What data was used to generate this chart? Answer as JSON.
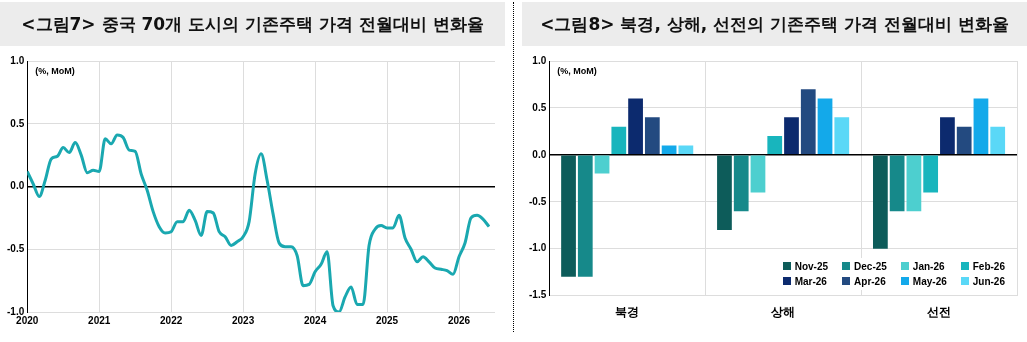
{
  "chart_data": [
    {
      "type": "line",
      "title": "<그림7> 중국 70개 도시의 기존주택 가격 전월대비 변화율",
      "annotations": [
        "(%, MoM)"
      ],
      "color": "#1aa8b0",
      "grid": true,
      "legend": false,
      "xlim": [
        "2020-01",
        "2026-07"
      ],
      "xticks": [
        "2020",
        "2021",
        "2022",
        "2023",
        "2024",
        "2025",
        "2026"
      ],
      "ylim": [
        -1,
        1
      ],
      "yticks": [
        {
          "value": -1,
          "label": "-1.0"
        },
        -0.5,
        {
          "value": 0,
          "label": "0.0"
        },
        0.5,
        {
          "value": 1,
          "label": "1.0"
        }
      ],
      "x": [
        "2020-01",
        "2020-02",
        "2020-03",
        "2020-04",
        "2020-05",
        "2020-06",
        "2020-07",
        "2020-08",
        "2020-09",
        "2020-10",
        "2020-11",
        "2020-12",
        "2021-01",
        "2021-02",
        "2021-03",
        "2021-04",
        "2021-05",
        "2021-06",
        "2021-07",
        "2021-08",
        "2021-09",
        "2021-10",
        "2021-11",
        "2021-12",
        "2022-01",
        "2022-02",
        "2022-03",
        "2022-04",
        "2022-05",
        "2022-06",
        "2022-07",
        "2022-08",
        "2022-09",
        "2022-10",
        "2022-11",
        "2022-12",
        "2023-01",
        "2023-02",
        "2023-03",
        "2023-04",
        "2023-05",
        "2023-06",
        "2023-07",
        "2023-08",
        "2023-09",
        "2023-10",
        "2023-11",
        "2023-12",
        "2024-01",
        "2024-02",
        "2024-03",
        "2024-04",
        "2024-05",
        "2024-06",
        "2024-07",
        "2024-08",
        "2024-09",
        "2024-10",
        "2024-11",
        "2024-12",
        "2025-01",
        "2025-02",
        "2025-03",
        "2025-04",
        "2025-05",
        "2025-06",
        "2025-07",
        "2025-08",
        "2025-09",
        "2025-10",
        "2025-11",
        "2025-12",
        "2026-01",
        "2026-02",
        "2026-03",
        "2026-04",
        "2026-05",
        "2026-06"
      ],
      "values": [
        0.12,
        0.02,
        -0.08,
        0.05,
        0.22,
        0.24,
        0.31,
        0.27,
        0.35,
        0.25,
        0.11,
        0.13,
        0.12,
        0.38,
        0.34,
        0.41,
        0.39,
        0.29,
        0.28,
        0.1,
        -0.03,
        -0.2,
        -0.32,
        -0.37,
        -0.36,
        -0.28,
        -0.28,
        -0.19,
        -0.27,
        -0.39,
        -0.2,
        -0.21,
        -0.36,
        -0.4,
        -0.47,
        -0.44,
        -0.4,
        -0.28,
        0.1,
        0.26,
        0.05,
        -0.22,
        -0.45,
        -0.48,
        -0.48,
        -0.55,
        -0.79,
        -0.78,
        -0.68,
        -0.62,
        -0.52,
        -0.95,
        -1.0,
        -0.88,
        -0.8,
        -0.94,
        -0.94,
        -0.47,
        -0.34,
        -0.31,
        -0.33,
        -0.33,
        -0.23,
        -0.41,
        -0.5,
        -0.6,
        -0.56,
        -0.6,
        -0.65,
        -0.66,
        -0.67,
        -0.7,
        -0.56,
        -0.45,
        -0.25,
        -0.23,
        -0.26,
        -0.32
      ]
    },
    {
      "type": "bar",
      "title": "<그림8> 북경, 상해, 선전의 기존주택 가격 전월대비 변화율",
      "annotations": [
        "(%, MoM)"
      ],
      "grid": true,
      "legend": "bottom right",
      "ylim": [
        -1.5,
        1
      ],
      "yticks": [
        -1.5,
        {
          "value": -1,
          "label": "-1.0"
        },
        -0.5,
        {
          "value": 0,
          "label": "0.0"
        },
        0.5,
        {
          "value": 1,
          "label": "1.0"
        }
      ],
      "categories": [
        "북경",
        "상해",
        "선전"
      ],
      "series": [
        {
          "name": "Nov-25",
          "color": "#0d5c5a",
          "values": [
            -1.3,
            -0.8,
            -1.0
          ]
        },
        {
          "name": "Dec-25",
          "color": "#16898a",
          "values": [
            -1.3,
            -0.6,
            -0.6
          ]
        },
        {
          "name": "Jan-26",
          "color": "#4dcfcf",
          "values": [
            -0.2,
            -0.4,
            -0.6
          ]
        },
        {
          "name": "Feb-26",
          "color": "#18b5bd",
          "values": [
            0.3,
            0.2,
            -0.4
          ]
        },
        {
          "name": "Mar-26",
          "color": "#0c2a6e",
          "values": [
            0.6,
            0.4,
            0.4
          ]
        },
        {
          "name": "Apr-26",
          "color": "#234a80",
          "values": [
            0.4,
            0.7,
            0.3
          ]
        },
        {
          "name": "May-26",
          "color": "#13a9ea",
          "values": [
            0.1,
            0.6,
            0.6
          ]
        },
        {
          "name": "Jun-26",
          "color": "#5ad8f7",
          "values": [
            0.1,
            0.4,
            0.3
          ]
        }
      ]
    }
  ]
}
